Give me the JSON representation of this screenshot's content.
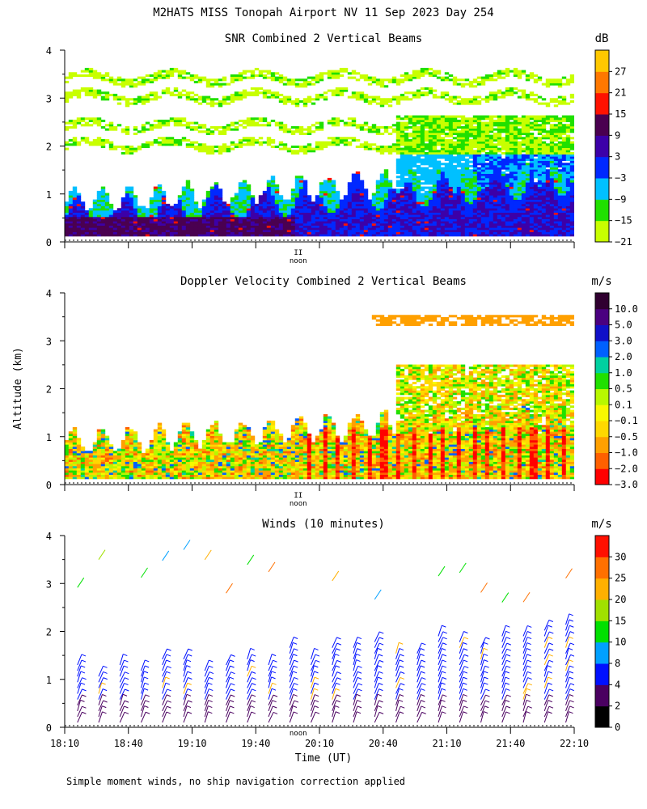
{
  "page": {
    "title": "M2HATS MISS Tonopah Airport NV  11 Sep 2023 Day 254",
    "footnote": "Simple moment winds, no ship navigation correction applied"
  },
  "axes": {
    "ylabel": "Altitude (km)",
    "xlabel": "Time (UT)",
    "x_tick_labels": [
      "18:10",
      "18:40",
      "19:10",
      "19:40",
      "20:10",
      "20:40",
      "21:10",
      "21:40",
      "22:10"
    ],
    "x_range_utc_hours": [
      18.1667,
      22.1667
    ],
    "y_tick_labels": [
      "0",
      "1",
      "2",
      "3",
      "4"
    ],
    "y_range_km": [
      0,
      4
    ],
    "noon_label": "noon",
    "noon_marker": "II",
    "noon_utc_hours": 20.0
  },
  "chart_data": [
    {
      "type": "heatmap",
      "title": "SNR Combined 2 Vertical Beams",
      "colorbar_unit": "dB",
      "colorbar_labels": [
        "27",
        "21",
        "15",
        "9",
        "3",
        "−3",
        "−9",
        "−15",
        "−21"
      ],
      "colorbar_values": [
        27,
        21,
        15,
        9,
        3,
        -3,
        -9,
        -15,
        -21
      ],
      "colors": [
        "#c8ff00",
        "#20e000",
        "#00c0ff",
        "#0028ff",
        "#3c00a8",
        "#4a0050",
        "#ff1200",
        "#ff7800",
        "#ffc800"
      ],
      "xlabel": "",
      "ylabel": "Altitude (km)",
      "ylim": [
        0,
        4
      ]
    },
    {
      "type": "heatmap",
      "title": "Doppler Velocity Combined 2 Vertical Beams",
      "colorbar_unit": "m/s",
      "colorbar_labels": [
        "10.0",
        "5.0",
        "3.0",
        "2.0",
        "1.0",
        "0.5",
        "0.1",
        "−0.1",
        "−0.5",
        "−1.0",
        "−2.0",
        "−3.0"
      ],
      "colorbar_values": [
        10.0,
        5.0,
        3.0,
        2.0,
        1.0,
        0.5,
        0.1,
        -0.1,
        -0.5,
        -1.0,
        -2.0,
        -3.0
      ],
      "colors": [
        "#ff0000",
        "#ff6000",
        "#ffa000",
        "#ffd800",
        "#f8f800",
        "#b8f800",
        "#20e000",
        "#00d0a0",
        "#0060ff",
        "#1010c8",
        "#4a0080",
        "#300030"
      ],
      "xlabel": "",
      "ylabel": "Altitude (km)",
      "ylim": [
        0,
        4
      ]
    },
    {
      "type": "scatter",
      "title": "Winds (10 minutes)",
      "colorbar_unit": "m/s",
      "colorbar_labels": [
        "30",
        "25",
        "20",
        "15",
        "10",
        "8",
        "4",
        "2",
        "0"
      ],
      "colorbar_values": [
        30,
        25,
        20,
        15,
        10,
        8,
        4,
        2,
        0
      ],
      "colors": [
        "#000000",
        "#4a0060",
        "#0010ff",
        "#00a0ff",
        "#00e000",
        "#a0e000",
        "#ffb000",
        "#ff7000",
        "#ff1000"
      ],
      "xlabel": "Time (UT)",
      "ylabel": "Altitude (km)",
      "ylim": [
        0,
        4
      ]
    }
  ]
}
